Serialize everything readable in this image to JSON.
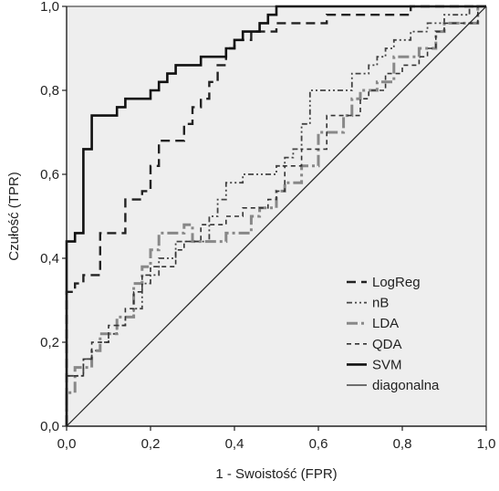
{
  "chart_data": {
    "type": "line",
    "title": "",
    "xlabel": "1 - Swoistość (FPR)",
    "ylabel": "Czułość (TPR)",
    "xlim": [
      0,
      1
    ],
    "ylim": [
      0,
      1
    ],
    "x_ticks": [
      "0,0",
      "0,2",
      "0,4",
      "0,6",
      "0,8",
      "1,0"
    ],
    "y_ticks": [
      "0,0",
      "0,2",
      "0,4",
      "0,6",
      "0,8",
      "1,0"
    ],
    "grid": false,
    "background": "#eeeeee",
    "legend_position": "bottom-right",
    "series": [
      {
        "name": "LogReg",
        "color": "#222222",
        "dash": "10,6",
        "width": 2.4,
        "points": [
          [
            0,
            0
          ],
          [
            0,
            0.32
          ],
          [
            0.02,
            0.32
          ],
          [
            0.02,
            0.34
          ],
          [
            0.04,
            0.34
          ],
          [
            0.04,
            0.36
          ],
          [
            0.08,
            0.36
          ],
          [
            0.08,
            0.46
          ],
          [
            0.14,
            0.46
          ],
          [
            0.14,
            0.54
          ],
          [
            0.18,
            0.54
          ],
          [
            0.18,
            0.56
          ],
          [
            0.2,
            0.56
          ],
          [
            0.2,
            0.62
          ],
          [
            0.22,
            0.62
          ],
          [
            0.22,
            0.68
          ],
          [
            0.28,
            0.68
          ],
          [
            0.28,
            0.72
          ],
          [
            0.3,
            0.72
          ],
          [
            0.3,
            0.76
          ],
          [
            0.32,
            0.76
          ],
          [
            0.32,
            0.78
          ],
          [
            0.34,
            0.78
          ],
          [
            0.34,
            0.82
          ],
          [
            0.36,
            0.82
          ],
          [
            0.36,
            0.86
          ],
          [
            0.38,
            0.86
          ],
          [
            0.38,
            0.9
          ],
          [
            0.4,
            0.9
          ],
          [
            0.4,
            0.92
          ],
          [
            0.44,
            0.92
          ],
          [
            0.44,
            0.94
          ],
          [
            0.5,
            0.94
          ],
          [
            0.5,
            0.96
          ],
          [
            0.62,
            0.96
          ],
          [
            0.62,
            0.98
          ],
          [
            0.82,
            0.98
          ],
          [
            0.82,
            1.0
          ],
          [
            1.0,
            1.0
          ]
        ]
      },
      {
        "name": "nB",
        "color": "#444444",
        "dash": "6,3,2,3,2,3",
        "width": 1.8,
        "points": [
          [
            0,
            0
          ],
          [
            0,
            0.12
          ],
          [
            0.04,
            0.12
          ],
          [
            0.04,
            0.16
          ],
          [
            0.06,
            0.16
          ],
          [
            0.06,
            0.18
          ],
          [
            0.08,
            0.18
          ],
          [
            0.08,
            0.2
          ],
          [
            0.1,
            0.2
          ],
          [
            0.1,
            0.22
          ],
          [
            0.12,
            0.22
          ],
          [
            0.12,
            0.24
          ],
          [
            0.14,
            0.24
          ],
          [
            0.14,
            0.26
          ],
          [
            0.16,
            0.26
          ],
          [
            0.16,
            0.28
          ],
          [
            0.18,
            0.28
          ],
          [
            0.18,
            0.34
          ],
          [
            0.2,
            0.34
          ],
          [
            0.2,
            0.36
          ],
          [
            0.22,
            0.36
          ],
          [
            0.22,
            0.4
          ],
          [
            0.26,
            0.4
          ],
          [
            0.26,
            0.44
          ],
          [
            0.34,
            0.44
          ],
          [
            0.34,
            0.5
          ],
          [
            0.36,
            0.5
          ],
          [
            0.36,
            0.54
          ],
          [
            0.38,
            0.54
          ],
          [
            0.38,
            0.58
          ],
          [
            0.42,
            0.58
          ],
          [
            0.42,
            0.6
          ],
          [
            0.5,
            0.6
          ],
          [
            0.5,
            0.62
          ],
          [
            0.52,
            0.62
          ],
          [
            0.52,
            0.64
          ],
          [
            0.54,
            0.64
          ],
          [
            0.54,
            0.66
          ],
          [
            0.56,
            0.66
          ],
          [
            0.56,
            0.72
          ],
          [
            0.58,
            0.72
          ],
          [
            0.58,
            0.8
          ],
          [
            0.68,
            0.8
          ],
          [
            0.68,
            0.84
          ],
          [
            0.72,
            0.84
          ],
          [
            0.72,
            0.86
          ],
          [
            0.74,
            0.86
          ],
          [
            0.74,
            0.88
          ],
          [
            0.76,
            0.88
          ],
          [
            0.76,
            0.9
          ],
          [
            0.78,
            0.9
          ],
          [
            0.78,
            0.92
          ],
          [
            0.82,
            0.92
          ],
          [
            0.82,
            0.94
          ],
          [
            0.86,
            0.94
          ],
          [
            0.86,
            0.96
          ],
          [
            0.9,
            0.96
          ],
          [
            0.9,
            0.98
          ],
          [
            0.96,
            0.98
          ],
          [
            0.96,
            1.0
          ],
          [
            1.0,
            1.0
          ]
        ]
      },
      {
        "name": "LDA",
        "color": "#888888",
        "dash": "12,4,3,4",
        "width": 3,
        "points": [
          [
            0,
            0
          ],
          [
            0,
            0.08
          ],
          [
            0.02,
            0.08
          ],
          [
            0.02,
            0.14
          ],
          [
            0.06,
            0.14
          ],
          [
            0.06,
            0.18
          ],
          [
            0.08,
            0.18
          ],
          [
            0.08,
            0.22
          ],
          [
            0.12,
            0.22
          ],
          [
            0.12,
            0.26
          ],
          [
            0.16,
            0.26
          ],
          [
            0.16,
            0.34
          ],
          [
            0.18,
            0.34
          ],
          [
            0.18,
            0.38
          ],
          [
            0.2,
            0.38
          ],
          [
            0.2,
            0.42
          ],
          [
            0.22,
            0.42
          ],
          [
            0.22,
            0.46
          ],
          [
            0.28,
            0.46
          ],
          [
            0.28,
            0.48
          ],
          [
            0.3,
            0.48
          ],
          [
            0.3,
            0.44
          ],
          [
            0.38,
            0.44
          ],
          [
            0.38,
            0.46
          ],
          [
            0.44,
            0.46
          ],
          [
            0.44,
            0.5
          ],
          [
            0.46,
            0.5
          ],
          [
            0.46,
            0.52
          ],
          [
            0.5,
            0.52
          ],
          [
            0.5,
            0.56
          ],
          [
            0.52,
            0.56
          ],
          [
            0.52,
            0.58
          ],
          [
            0.56,
            0.58
          ],
          [
            0.56,
            0.62
          ],
          [
            0.6,
            0.62
          ],
          [
            0.6,
            0.7
          ],
          [
            0.66,
            0.7
          ],
          [
            0.66,
            0.74
          ],
          [
            0.68,
            0.74
          ],
          [
            0.68,
            0.78
          ],
          [
            0.7,
            0.78
          ],
          [
            0.7,
            0.8
          ],
          [
            0.74,
            0.8
          ],
          [
            0.74,
            0.82
          ],
          [
            0.78,
            0.82
          ],
          [
            0.78,
            0.88
          ],
          [
            0.84,
            0.88
          ],
          [
            0.84,
            0.9
          ],
          [
            0.88,
            0.9
          ],
          [
            0.88,
            0.94
          ],
          [
            0.9,
            0.94
          ],
          [
            0.9,
            0.96
          ],
          [
            0.98,
            0.96
          ],
          [
            0.98,
            1.0
          ],
          [
            1.0,
            1.0
          ]
        ]
      },
      {
        "name": "QDA",
        "color": "#333333",
        "dash": "5,4",
        "width": 1.6,
        "points": [
          [
            0,
            0
          ],
          [
            0,
            0.12
          ],
          [
            0.04,
            0.12
          ],
          [
            0.04,
            0.16
          ],
          [
            0.06,
            0.16
          ],
          [
            0.06,
            0.2
          ],
          [
            0.1,
            0.2
          ],
          [
            0.1,
            0.24
          ],
          [
            0.14,
            0.24
          ],
          [
            0.14,
            0.28
          ],
          [
            0.16,
            0.28
          ],
          [
            0.16,
            0.32
          ],
          [
            0.18,
            0.32
          ],
          [
            0.18,
            0.36
          ],
          [
            0.2,
            0.36
          ],
          [
            0.2,
            0.38
          ],
          [
            0.26,
            0.38
          ],
          [
            0.26,
            0.42
          ],
          [
            0.28,
            0.42
          ],
          [
            0.28,
            0.44
          ],
          [
            0.32,
            0.44
          ],
          [
            0.32,
            0.48
          ],
          [
            0.38,
            0.48
          ],
          [
            0.38,
            0.5
          ],
          [
            0.42,
            0.5
          ],
          [
            0.42,
            0.52
          ],
          [
            0.48,
            0.52
          ],
          [
            0.48,
            0.54
          ],
          [
            0.5,
            0.54
          ],
          [
            0.5,
            0.56
          ],
          [
            0.52,
            0.56
          ],
          [
            0.52,
            0.62
          ],
          [
            0.56,
            0.62
          ],
          [
            0.56,
            0.66
          ],
          [
            0.62,
            0.66
          ],
          [
            0.62,
            0.74
          ],
          [
            0.7,
            0.74
          ],
          [
            0.7,
            0.78
          ],
          [
            0.72,
            0.78
          ],
          [
            0.72,
            0.8
          ],
          [
            0.76,
            0.8
          ],
          [
            0.76,
            0.84
          ],
          [
            0.8,
            0.84
          ],
          [
            0.8,
            0.86
          ],
          [
            0.84,
            0.86
          ],
          [
            0.84,
            0.88
          ],
          [
            0.86,
            0.88
          ],
          [
            0.86,
            0.9
          ],
          [
            0.88,
            0.9
          ],
          [
            0.88,
            0.94
          ],
          [
            0.9,
            0.94
          ],
          [
            0.9,
            0.96
          ],
          [
            0.98,
            0.96
          ],
          [
            0.98,
            1.0
          ],
          [
            1.0,
            1.0
          ]
        ]
      },
      {
        "name": "SVM",
        "color": "#111111",
        "dash": "",
        "width": 2.6,
        "points": [
          [
            0,
            0
          ],
          [
            0,
            0.44
          ],
          [
            0.02,
            0.44
          ],
          [
            0.02,
            0.46
          ],
          [
            0.04,
            0.46
          ],
          [
            0.04,
            0.66
          ],
          [
            0.06,
            0.66
          ],
          [
            0.06,
            0.74
          ],
          [
            0.12,
            0.74
          ],
          [
            0.12,
            0.76
          ],
          [
            0.14,
            0.76
          ],
          [
            0.14,
            0.78
          ],
          [
            0.2,
            0.78
          ],
          [
            0.2,
            0.8
          ],
          [
            0.22,
            0.8
          ],
          [
            0.22,
            0.82
          ],
          [
            0.24,
            0.82
          ],
          [
            0.24,
            0.84
          ],
          [
            0.26,
            0.84
          ],
          [
            0.26,
            0.86
          ],
          [
            0.32,
            0.86
          ],
          [
            0.32,
            0.88
          ],
          [
            0.38,
            0.88
          ],
          [
            0.38,
            0.9
          ],
          [
            0.4,
            0.9
          ],
          [
            0.4,
            0.92
          ],
          [
            0.42,
            0.92
          ],
          [
            0.42,
            0.94
          ],
          [
            0.46,
            0.94
          ],
          [
            0.46,
            0.96
          ],
          [
            0.48,
            0.96
          ],
          [
            0.48,
            0.98
          ],
          [
            0.5,
            0.98
          ],
          [
            0.5,
            1.0
          ],
          [
            1.0,
            1.0
          ]
        ]
      },
      {
        "name": "diagonalna",
        "color": "#222222",
        "dash": "",
        "width": 1.2,
        "points": [
          [
            0,
            0
          ],
          [
            1,
            1
          ]
        ]
      }
    ]
  }
}
